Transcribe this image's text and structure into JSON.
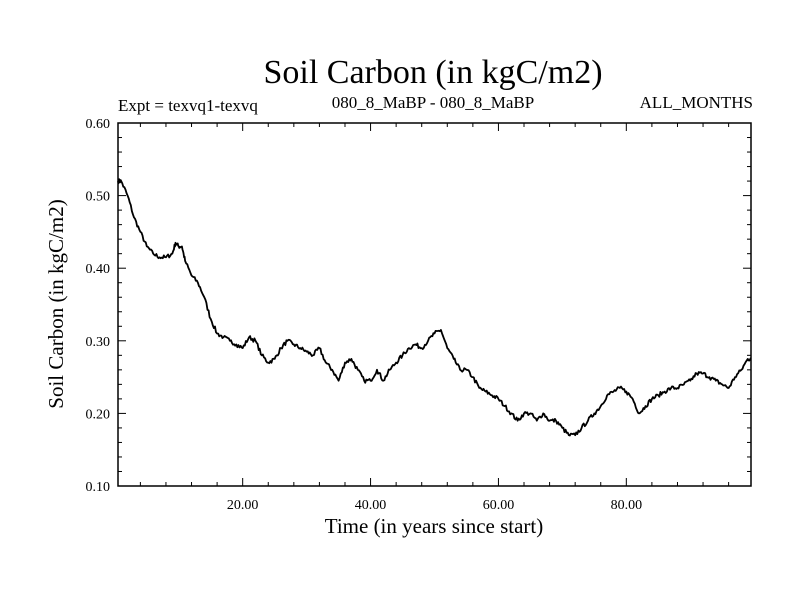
{
  "chart_data": {
    "type": "line",
    "title": "Soil Carbon (in kgC/m2)",
    "left_subtitle": "Expt = texvq1-texvq",
    "center_subtitle": "080_8_MaBP - 080_8_MaBP",
    "right_subtitle": "ALL_MONTHS",
    "xlabel": "Time (in years since start)",
    "ylabel": "Soil Carbon (in kgC/m2)",
    "xlim": [
      0.5,
      99.5
    ],
    "ylim": [
      0.1,
      0.6
    ],
    "x_ticks": [
      20,
      40,
      60,
      80
    ],
    "x_tick_labels": [
      "20.00",
      "40.00",
      "60.00",
      "80.00"
    ],
    "y_ticks": [
      0.1,
      0.2,
      0.3,
      0.4,
      0.5,
      0.6
    ],
    "y_tick_labels": [
      "0.10",
      "0.20",
      "0.30",
      "0.40",
      "0.50",
      "0.60"
    ],
    "series": [
      {
        "name": "Soil Carbon",
        "color": "#000000",
        "x": [
          0.5,
          1.0,
          2.0,
          3.0,
          4.0,
          5.0,
          6.0,
          7.0,
          8.0,
          9.0,
          9.5,
          10.0,
          10.5,
          11.0,
          12.0,
          13.0,
          14.0,
          15.0,
          16.0,
          17.0,
          18.0,
          19.0,
          20.0,
          21.0,
          22.0,
          23.0,
          24.0,
          25.0,
          26.0,
          27.0,
          28.0,
          29.0,
          30.0,
          31.0,
          32.0,
          33.0,
          34.0,
          35.0,
          36.0,
          37.0,
          38.0,
          39.0,
          40.0,
          41.0,
          42.0,
          43.0,
          44.0,
          45.0,
          46.0,
          47.0,
          48.0,
          49.0,
          50.0,
          51.0,
          52.0,
          53.0,
          54.0,
          55.0,
          56.0,
          57.0,
          58.0,
          59.0,
          60.0,
          61.0,
          62.0,
          63.0,
          64.0,
          65.0,
          66.0,
          67.0,
          68.0,
          69.0,
          70.0,
          71.0,
          72.0,
          73.0,
          74.0,
          75.0,
          76.0,
          77.0,
          78.0,
          79.0,
          80.0,
          81.0,
          82.0,
          83.0,
          84.0,
          85.0,
          86.0,
          87.0,
          88.0,
          89.0,
          90.0,
          91.0,
          92.0,
          93.0,
          94.0,
          95.0,
          96.0,
          97.0,
          98.0,
          99.0,
          99.5
        ],
        "y": [
          0.52,
          0.52,
          0.5,
          0.47,
          0.45,
          0.43,
          0.42,
          0.415,
          0.415,
          0.42,
          0.435,
          0.43,
          0.43,
          0.41,
          0.39,
          0.38,
          0.36,
          0.33,
          0.31,
          0.305,
          0.3,
          0.295,
          0.29,
          0.305,
          0.3,
          0.28,
          0.27,
          0.275,
          0.29,
          0.3,
          0.295,
          0.29,
          0.285,
          0.28,
          0.29,
          0.27,
          0.26,
          0.245,
          0.27,
          0.275,
          0.26,
          0.245,
          0.245,
          0.26,
          0.245,
          0.26,
          0.27,
          0.28,
          0.29,
          0.295,
          0.29,
          0.3,
          0.31,
          0.315,
          0.29,
          0.275,
          0.26,
          0.26,
          0.25,
          0.235,
          0.23,
          0.225,
          0.22,
          0.21,
          0.2,
          0.19,
          0.2,
          0.2,
          0.19,
          0.2,
          0.19,
          0.19,
          0.18,
          0.17,
          0.17,
          0.18,
          0.19,
          0.2,
          0.21,
          0.225,
          0.23,
          0.235,
          0.23,
          0.22,
          0.2,
          0.21,
          0.22,
          0.225,
          0.23,
          0.235,
          0.235,
          0.24,
          0.245,
          0.255,
          0.255,
          0.25,
          0.245,
          0.24,
          0.235,
          0.25,
          0.26,
          0.275,
          0.275
        ]
      }
    ]
  }
}
